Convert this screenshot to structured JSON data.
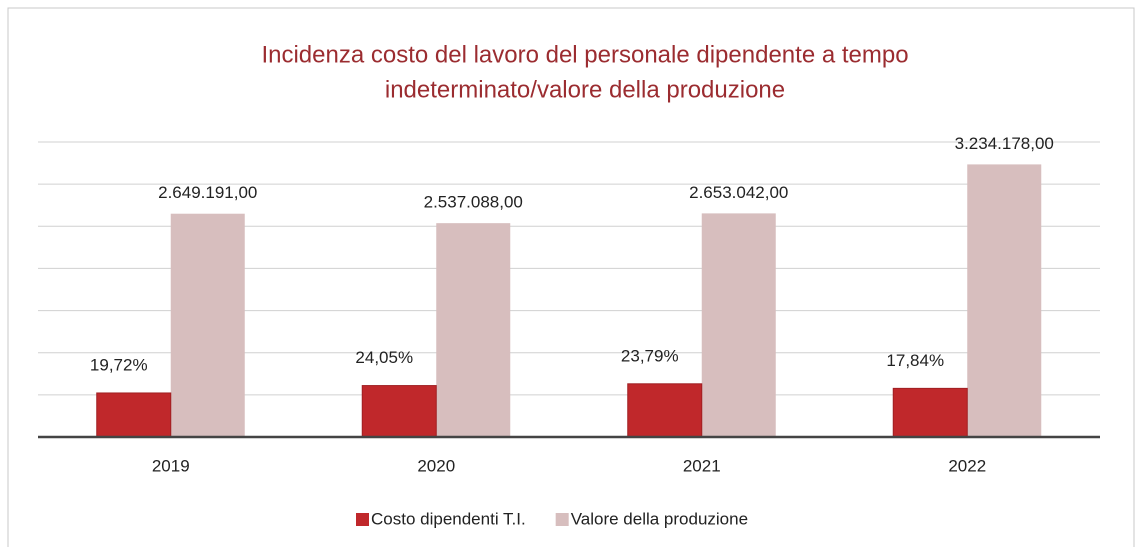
{
  "chart_data": {
    "type": "bar",
    "title": "Incidenza costo del lavoro del personale dipendente a tempo indeterminato/valore della produzione",
    "title_lines": [
      "Incidenza costo del lavoro del personale dipendente a tempo",
      "indeterminato/valore della produzione"
    ],
    "categories": [
      "2019",
      "2020",
      "2021",
      "2022"
    ],
    "series": [
      {
        "name": "Costo dipendenti T.I.",
        "color": "#c0282b",
        "values": [
          19.72,
          24.05,
          23.79,
          17.84
        ],
        "value_labels": [
          "19,72%",
          "24,05%",
          "23,79%",
          "17,84%"
        ]
      },
      {
        "name": "Valore della produzione",
        "color": "#d7bebe",
        "values": [
          2649191,
          2537088,
          2653042,
          3234178
        ],
        "value_labels": [
          "2.649.191,00",
          "2.537.088,00",
          "2.653.042,00",
          "3.234.178,00"
        ]
      }
    ],
    "ylim": [
      0,
      3500000
    ],
    "yticks": [
      0,
      500000,
      1000000,
      1500000,
      2000000,
      2500000,
      3000000,
      3500000
    ],
    "grid": true,
    "legend": "bottom"
  }
}
